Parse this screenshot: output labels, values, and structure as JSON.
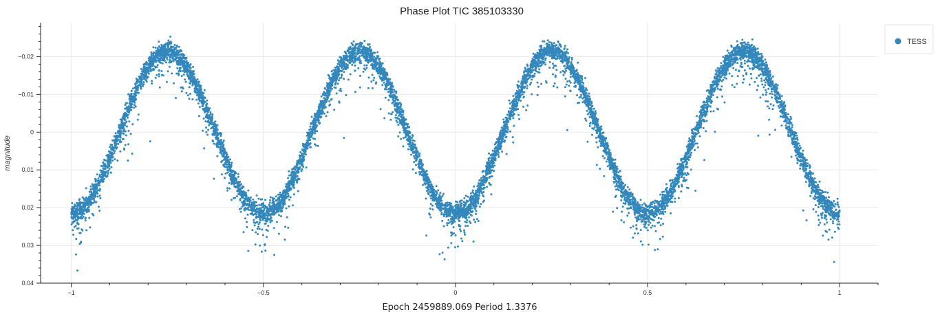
{
  "chart_data": {
    "type": "scatter",
    "title": "Phase Plot TIC 385103330",
    "xlabel": "Epoch 2459889.069    Period 1.3376",
    "ylabel": "magnitude",
    "xlim": [
      -1.08,
      1.1
    ],
    "ylim": [
      -0.029,
      0.04
    ],
    "y_inverted": true,
    "x_ticks": [
      -1,
      -0.5,
      0,
      0.5,
      1
    ],
    "x_tick_labels": [
      "−1",
      "−0.5",
      "0",
      "0.5",
      "1"
    ],
    "y_ticks": [
      -0.02,
      -0.01,
      0,
      0.01,
      0.02,
      0.03,
      0.04
    ],
    "y_tick_labels": [
      "−0.02",
      "−0.01",
      "0",
      "0.01",
      "0.02",
      "0.03",
      "0.04"
    ],
    "grid": true,
    "legend_position": "top-right, outside plot",
    "series": [
      {
        "name": "TESS",
        "color": "#3288bd",
        "marker": "circle",
        "model": "periodic sinusoid in phase, period 0.5 phase",
        "mean": 0.0,
        "amplitude": 0.0215,
        "band_halfwidth": 0.0013,
        "scatter_direction": "mostly toward fainter (larger) magnitude",
        "max_faint_outlier": 0.037,
        "x_range": [
          -1,
          1
        ],
        "points_sample": [
          {
            "x": -1.0,
            "y": 0.0205
          },
          {
            "x": -0.875,
            "y": 0.0
          },
          {
            "x": -0.75,
            "y": -0.0225
          },
          {
            "x": -0.625,
            "y": 0.0
          },
          {
            "x": -0.5,
            "y": 0.021
          },
          {
            "x": -0.375,
            "y": 0.0
          },
          {
            "x": -0.25,
            "y": -0.0225
          },
          {
            "x": -0.125,
            "y": 0.0
          },
          {
            "x": 0.0,
            "y": 0.021
          },
          {
            "x": 0.125,
            "y": 0.0
          },
          {
            "x": 0.25,
            "y": -0.0225
          },
          {
            "x": 0.375,
            "y": 0.0
          },
          {
            "x": 0.5,
            "y": 0.021
          },
          {
            "x": 0.625,
            "y": 0.0
          },
          {
            "x": 0.75,
            "y": -0.0225
          },
          {
            "x": 0.875,
            "y": 0.0
          },
          {
            "x": 1.0,
            "y": 0.0205
          },
          {
            "x": -0.99,
            "y": 0.036
          },
          {
            "x": 0.0,
            "y": 0.0325
          },
          {
            "x": 1.0,
            "y": 0.0335
          },
          {
            "x": -0.5,
            "y": 0.031
          }
        ]
      }
    ]
  }
}
